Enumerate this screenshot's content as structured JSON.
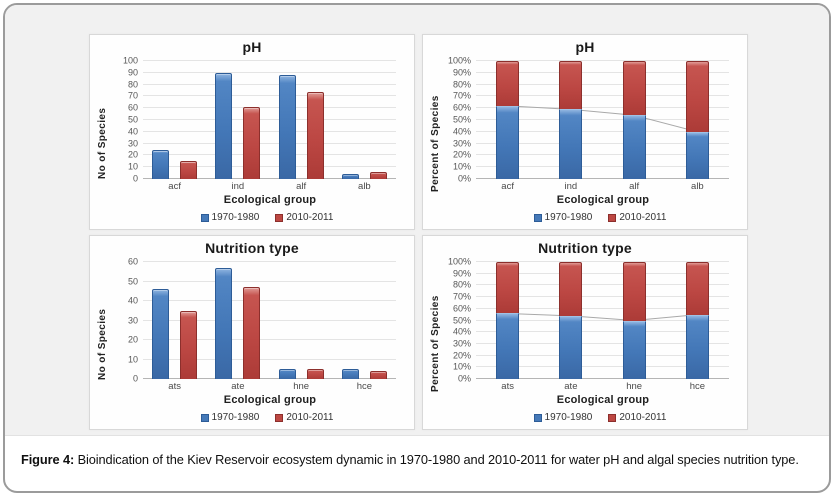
{
  "figure": {
    "caption_label": "Figure 4:",
    "caption_text": " Bioindication of the Kiev Reservoir ecosystem dynamic in 1970-1980 and 2010-2011 for water pH and algal species nutrition type."
  },
  "chart_data": [
    {
      "id": "ph-species-count",
      "type": "bar",
      "title": "pH",
      "xlabel": "Ecological group",
      "ylabel": "No of Species",
      "categories": [
        "acf",
        "ind",
        "alf",
        "alb"
      ],
      "series": [
        {
          "name": "1970-1980",
          "color": "#4579b8",
          "values": [
            25,
            90,
            88,
            4
          ]
        },
        {
          "name": "2010-2011",
          "color": "#bd4742",
          "values": [
            15,
            61,
            74,
            6
          ]
        }
      ],
      "ylim": [
        0,
        100
      ],
      "yticks": [
        "0",
        "10",
        "20",
        "30",
        "40",
        "50",
        "60",
        "70",
        "80",
        "90",
        "100"
      ],
      "grid": true,
      "legend_position": "bottom"
    },
    {
      "id": "ph-percent",
      "type": "stacked100",
      "title": "pH",
      "xlabel": "Ecological group",
      "ylabel": "Percent of Species",
      "categories": [
        "acf",
        "ind",
        "alf",
        "alb"
      ],
      "series": [
        {
          "name": "1970-1980",
          "color": "#4579b8",
          "values": [
            62,
            59,
            54,
            40
          ]
        },
        {
          "name": "2010-2011",
          "color": "#bd4742",
          "values": [
            38,
            41,
            46,
            60
          ]
        }
      ],
      "line": {
        "color": "#a9a9a9",
        "values": [
          62,
          59,
          54,
          40
        ]
      },
      "ylim": [
        0,
        100
      ],
      "yticks": [
        "0%",
        "10%",
        "20%",
        "30%",
        "40%",
        "50%",
        "60%",
        "70%",
        "80%",
        "90%",
        "100%"
      ],
      "grid": true,
      "legend_position": "bottom"
    },
    {
      "id": "nutrition-species-count",
      "type": "bar",
      "title": "Nutrition type",
      "xlabel": "Ecological group",
      "ylabel": "No of Species",
      "categories": [
        "ats",
        "ate",
        "hne",
        "hce"
      ],
      "series": [
        {
          "name": "1970-1980",
          "color": "#4579b8",
          "values": [
            46,
            57,
            5,
            5
          ]
        },
        {
          "name": "2010-2011",
          "color": "#bd4742",
          "values": [
            35,
            47,
            5,
            4
          ]
        }
      ],
      "ylim": [
        0,
        60
      ],
      "yticks": [
        "0",
        "10",
        "20",
        "30",
        "40",
        "50",
        "60"
      ],
      "grid": true,
      "legend_position": "bottom"
    },
    {
      "id": "nutrition-percent",
      "type": "stacked100",
      "title": "Nutrition type",
      "xlabel": "Ecological group",
      "ylabel": "Percent of Species",
      "categories": [
        "ats",
        "ate",
        "hne",
        "hce"
      ],
      "series": [
        {
          "name": "1970-1980",
          "color": "#4579b8",
          "values": [
            56,
            54,
            50,
            55
          ]
        },
        {
          "name": "2010-2011",
          "color": "#bd4742",
          "values": [
            44,
            46,
            50,
            45
          ]
        }
      ],
      "line": {
        "color": "#a9a9a9",
        "values": [
          56,
          54,
          50,
          55
        ]
      },
      "ylim": [
        0,
        100
      ],
      "yticks": [
        "0%",
        "10%",
        "20%",
        "30%",
        "40%",
        "50%",
        "60%",
        "70%",
        "80%",
        "90%",
        "100%"
      ],
      "grid": true,
      "legend_position": "bottom"
    }
  ]
}
